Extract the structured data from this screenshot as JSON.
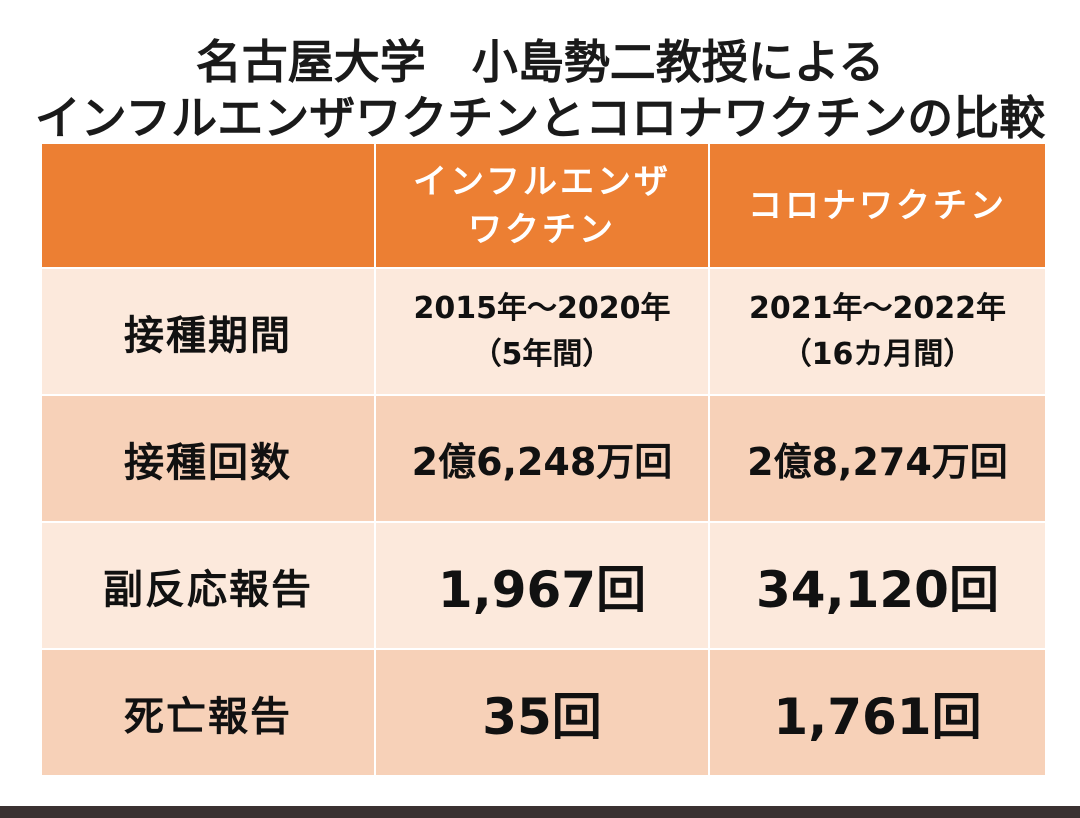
{
  "title": {
    "line1": "名古屋大学　小島勢二教授による",
    "line2": "インフルエンザワクチンとコロナワクチンの比較"
  },
  "table": {
    "header": {
      "empty": "",
      "col1_line1": "インフルエンザ",
      "col1_line2": "ワクチン",
      "col2": "コロナワクチン"
    },
    "rows": [
      {
        "label": "接種期間",
        "influenza_line1": "2015年～2020年",
        "influenza_line2": "（5年間）",
        "corona_line1": "2021年～2022年",
        "corona_line2": "（16カ月間）"
      },
      {
        "label": "接種回数",
        "influenza": "2億6,248万回",
        "corona": "2億8,274万回"
      },
      {
        "label": "副反応報告",
        "influenza": "1,967回",
        "corona": "34,120回"
      },
      {
        "label": "死亡報告",
        "influenza": "35回",
        "corona": "1,761回"
      }
    ]
  },
  "colors": {
    "header_orange": "#ec7f33",
    "row_light": "#fce9dc",
    "row_dark": "#f7d1b8",
    "highlight_red": "#e8160f"
  }
}
